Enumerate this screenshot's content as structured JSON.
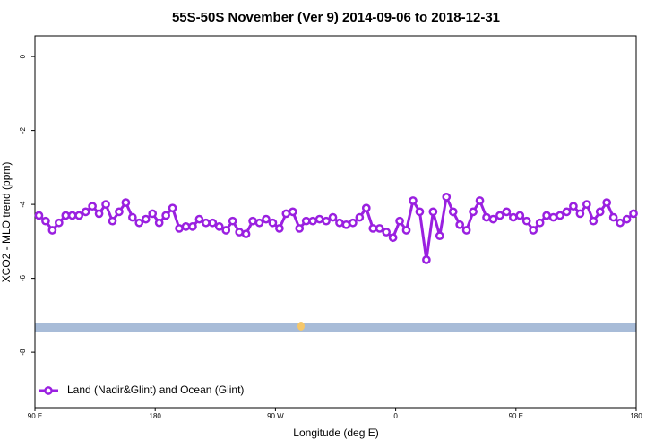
{
  "chart_data": {
    "type": "line",
    "title": "55S-50S November (Ver 9)   2014-09-06 to 2018-12-31",
    "x_label": "Longitude (deg E)",
    "y_label": "XCO2 - MLO trend (ppm)",
    "xlim": [
      90,
      540
    ],
    "ylim": [
      -9.5,
      0.56
    ],
    "xticks": [
      {
        "value": 90,
        "label": "90 E"
      },
      180,
      {
        "value": 270,
        "label": "90 W"
      },
      {
        "value": 360,
        "label": "0"
      },
      {
        "value": 450,
        "label": "90 E"
      },
      {
        "value": 540,
        "label": "180"
      }
    ],
    "yticks": [
      0,
      -2,
      -4,
      -6,
      -8
    ],
    "x": [
      93,
      98,
      103,
      108,
      113,
      118,
      123,
      128,
      133,
      138,
      143,
      148,
      153,
      158,
      163,
      168,
      173,
      178,
      183,
      188,
      193,
      198,
      203,
      208,
      213,
      218,
      223,
      228,
      233,
      238,
      243,
      248,
      253,
      258,
      263,
      268,
      273,
      278,
      283,
      288,
      293,
      298,
      303,
      308,
      313,
      318,
      323,
      328,
      333,
      338,
      343,
      348,
      353,
      358,
      363,
      368,
      373,
      378,
      383,
      388,
      393,
      398,
      403,
      408,
      413,
      418,
      423,
      428,
      433,
      438,
      443,
      448,
      453,
      458,
      463,
      468,
      473,
      478,
      483,
      488,
      493,
      498,
      503,
      508,
      513,
      518,
      523,
      528,
      533,
      538
    ],
    "series": [
      {
        "name": "Land (Nadir&Glint) and Ocean (Glint)",
        "color": "#9a20e0",
        "values": [
          -4.3,
          -4.45,
          -4.7,
          -4.5,
          -4.3,
          -4.3,
          -4.3,
          -4.2,
          -4.05,
          -4.25,
          -4.0,
          -4.45,
          -4.2,
          -3.95,
          -4.35,
          -4.5,
          -4.4,
          -4.25,
          -4.5,
          -4.3,
          -4.1,
          -4.65,
          -4.6,
          -4.6,
          -4.4,
          -4.5,
          -4.5,
          -4.6,
          -4.7,
          -4.45,
          -4.75,
          -4.8,
          -4.45,
          -4.5,
          -4.4,
          -4.5,
          -4.65,
          -4.25,
          -4.2,
          -4.65,
          -4.45,
          -4.45,
          -4.4,
          -4.45,
          -4.35,
          -4.5,
          -4.55,
          -4.5,
          -4.35,
          -4.1,
          -4.65,
          -4.65,
          -4.75,
          -4.9,
          -4.45,
          -4.7,
          -3.9,
          -4.2,
          -5.5,
          -4.2,
          -4.85,
          -3.8,
          -4.2,
          -4.55,
          -4.7,
          -4.2,
          -3.9,
          -4.35,
          -4.4,
          -4.3,
          -4.2,
          -4.35,
          -4.3,
          -4.45,
          -4.7,
          -4.5,
          -4.3,
          -4.35,
          -4.3,
          -4.2,
          -4.05,
          -4.25,
          -4.0,
          -4.45,
          -4.2,
          -3.95,
          -4.35,
          -4.5,
          -4.4,
          -4.25
        ]
      }
    ],
    "legend": "lower left"
  }
}
